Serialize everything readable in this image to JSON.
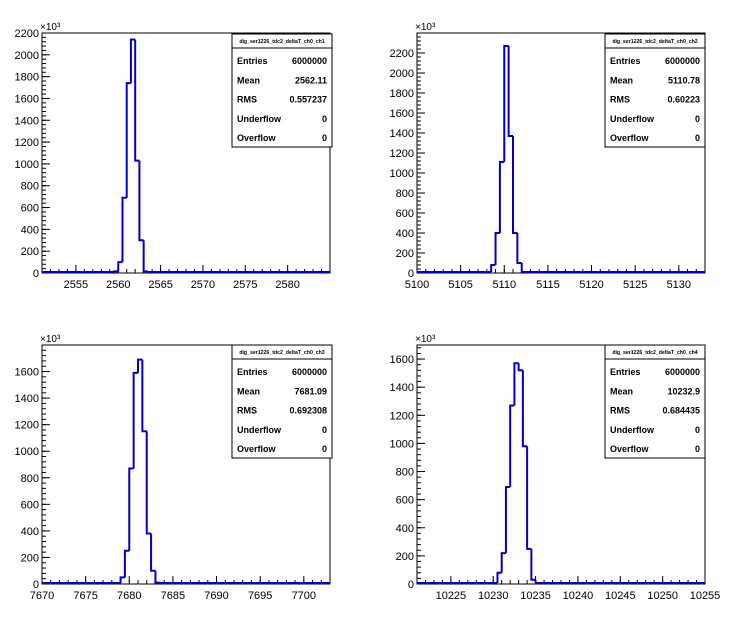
{
  "chart_data": [
    {
      "type": "histogram",
      "multiplier": "×10³",
      "xlim": [
        2551,
        2585
      ],
      "ylim": [
        0,
        2200
      ],
      "xticks": [
        2555,
        2560,
        2565,
        2570,
        2575,
        2580
      ],
      "yticks": [
        0,
        200,
        400,
        600,
        800,
        1000,
        1200,
        1400,
        1600,
        1800,
        2000,
        2200
      ],
      "bin_width": 0.5,
      "bins_x0": [
        2559.5,
        2560.0,
        2560.5,
        2561.0,
        2561.5,
        2562.0,
        2562.5,
        2563.0,
        2563.5
      ],
      "bins_y": [
        15,
        100,
        690,
        1740,
        2140,
        1030,
        300,
        15,
        5
      ],
      "stats": {
        "title": "dig_ser1226_tdc2_deltaT_ch0_ch1",
        "rows": [
          {
            "label": "Entries",
            "value": "6000000"
          },
          {
            "label": "Mean",
            "value": "2562.11"
          },
          {
            "label": "RMS",
            "value": "0.557237"
          },
          {
            "label": "Underflow",
            "value": "0"
          },
          {
            "label": "Overflow",
            "value": "0"
          }
        ]
      }
    },
    {
      "type": "histogram",
      "multiplier": "×10³",
      "xlim": [
        5100,
        5133
      ],
      "ylim": [
        0,
        2400
      ],
      "xticks": [
        5100,
        5105,
        5110,
        5115,
        5120,
        5125,
        5130
      ],
      "yticks": [
        0,
        200,
        400,
        600,
        800,
        1000,
        1200,
        1400,
        1600,
        1800,
        2000,
        2200
      ],
      "bin_width": 0.5,
      "bins_x0": [
        5108.5,
        5109.0,
        5109.5,
        5110.0,
        5110.5,
        5111.0,
        5111.5,
        5112.0
      ],
      "bins_y": [
        80,
        400,
        1110,
        2270,
        1370,
        400,
        100,
        5
      ],
      "stats": {
        "title": "dig_ser1226_tdc2_deltaT_ch0_ch2",
        "rows": [
          {
            "label": "Entries",
            "value": "6000000"
          },
          {
            "label": "Mean",
            "value": "5110.78"
          },
          {
            "label": "RMS",
            "value": "0.60223"
          },
          {
            "label": "Underflow",
            "value": "0"
          },
          {
            "label": "Overflow",
            "value": "0"
          }
        ]
      }
    },
    {
      "type": "histogram",
      "multiplier": "×10³",
      "xlim": [
        7670,
        7703
      ],
      "ylim": [
        0,
        1800
      ],
      "xticks": [
        7670,
        7675,
        7680,
        7685,
        7690,
        7695,
        7700
      ],
      "yticks": [
        0,
        200,
        400,
        600,
        800,
        1000,
        1200,
        1400,
        1600
      ],
      "bin_width": 0.5,
      "bins_x0": [
        7679.0,
        7679.5,
        7680.0,
        7680.5,
        7681.0,
        7681.5,
        7682.0,
        7682.5,
        7683.0
      ],
      "bins_y": [
        50,
        250,
        870,
        1590,
        1690,
        1150,
        380,
        100,
        10
      ],
      "stats": {
        "title": "dig_ser1226_tdc2_deltaT_ch0_ch3",
        "rows": [
          {
            "label": "Entries",
            "value": "6000000"
          },
          {
            "label": "Mean",
            "value": "7681.09"
          },
          {
            "label": "RMS",
            "value": "0.692308"
          },
          {
            "label": "Underflow",
            "value": "0"
          },
          {
            "label": "Overflow",
            "value": "0"
          }
        ]
      }
    },
    {
      "type": "histogram",
      "multiplier": "×10³",
      "xlim": [
        10221,
        10255
      ],
      "ylim": [
        0,
        1700
      ],
      "xticks": [
        10225,
        10230,
        10235,
        10240,
        10245,
        10250,
        10255
      ],
      "yticks": [
        0,
        200,
        400,
        600,
        800,
        1000,
        1200,
        1400,
        1600
      ],
      "bin_width": 0.5,
      "bins_x0": [
        10230.5,
        10231.0,
        10231.5,
        10232.0,
        10232.5,
        10233.0,
        10233.5,
        10234.0,
        10234.5
      ],
      "bins_y": [
        80,
        220,
        690,
        1270,
        1570,
        1520,
        980,
        250,
        30
      ],
      "stats": {
        "title": "dig_ser1226_tdc2_deltaT_ch0_ch4",
        "rows": [
          {
            "label": "Entries",
            "value": "6000000"
          },
          {
            "label": "Mean",
            "value": "10232.9"
          },
          {
            "label": "RMS",
            "value": "0.684435"
          },
          {
            "label": "Underflow",
            "value": "0"
          },
          {
            "label": "Overflow",
            "value": "0"
          }
        ]
      }
    }
  ],
  "colors": {
    "histogram_line": "#0000cc",
    "axis": "#000000",
    "background": "#ffffff"
  }
}
